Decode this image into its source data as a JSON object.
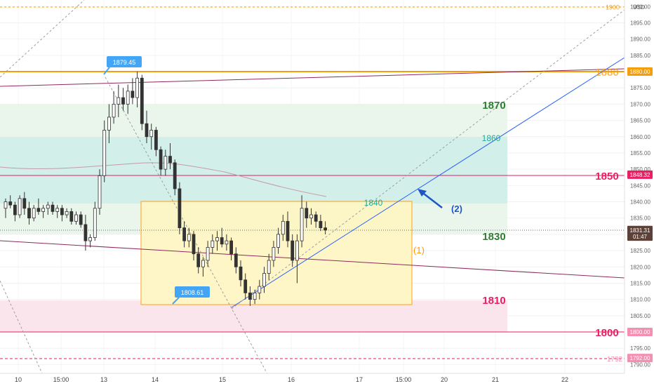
{
  "chart_data": {
    "type": "candlestick",
    "currency": "USD",
    "y_ticks": [
      1790.0,
      1795.0,
      1800.0,
      1805.0,
      1810.0,
      1815.0,
      1820.0,
      1825.0,
      1830.0,
      1835.0,
      1840.0,
      1845.0,
      1850.0,
      1855.0,
      1860.0,
      1865.0,
      1870.0,
      1875.0,
      1880.0,
      1885.0,
      1890.0,
      1895.0,
      1900.0
    ],
    "x_ticks": [
      "10",
      "15:00",
      "13",
      "14",
      "15",
      "16",
      "17",
      "15:00",
      "20",
      "21",
      "22"
    ],
    "price_badges": [
      {
        "text": "1900",
        "color": "#f59e0b",
        "style": "dashed-label"
      },
      {
        "text": "1880.00",
        "color": "#f59e0b"
      },
      {
        "text": "1848.32",
        "color": "#e91e63"
      },
      {
        "text": "1831.31",
        "color": "#5d4037"
      },
      {
        "text": "01:47",
        "color": "#5d4037"
      },
      {
        "text": "1800.00",
        "color": "#f48fb1"
      },
      {
        "text": "1792.00",
        "color": "#f48fb1"
      }
    ],
    "callouts": [
      {
        "text": "1879.45",
        "color": "#42a5f5"
      },
      {
        "text": "1808.61",
        "color": "#42a5f5"
      }
    ],
    "level_labels": [
      {
        "text": "1870",
        "color": "#2e7d32"
      },
      {
        "text": "1860",
        "color": "#26a69a"
      },
      {
        "text": "1850",
        "color": "#e91e63"
      },
      {
        "text": "1840",
        "color": "#26a69a"
      },
      {
        "text": "1830",
        "color": "#2e7d32"
      },
      {
        "text": "1810",
        "color": "#e91e63"
      },
      {
        "text": "1800",
        "color": "#e91e63"
      },
      {
        "text": "1880",
        "color": "#f59e0b"
      },
      {
        "text": "1792",
        "color": "#f48fb1"
      }
    ],
    "annotations": [
      {
        "text": "(1)",
        "color": "#ff9800"
      },
      {
        "text": "(2)",
        "color": "#1e56c8"
      }
    ],
    "zones": [
      {
        "name": "green-zone",
        "from": 1830,
        "to": 1870,
        "color": "#e8f5e9"
      },
      {
        "name": "teal-zone",
        "from": 1840,
        "to": 1860,
        "color": "#d6f2ee"
      },
      {
        "name": "pink-zone",
        "from": 1800,
        "to": 1810,
        "color": "#fbe4ec"
      },
      {
        "name": "yellow-box",
        "from": 1808.6,
        "to": 1840.6,
        "color": "#fff6c2"
      }
    ],
    "candles": [
      [
        1838,
        1841,
        1835,
        1840
      ],
      [
        1840,
        1842,
        1838,
        1839
      ],
      [
        1839,
        1840,
        1834,
        1836
      ],
      [
        1836,
        1842,
        1835,
        1841
      ],
      [
        1841,
        1843,
        1836,
        1838
      ],
      [
        1838,
        1840,
        1833,
        1835
      ],
      [
        1835,
        1839,
        1834,
        1838
      ],
      [
        1838,
        1841,
        1836,
        1837
      ],
      [
        1837,
        1839,
        1835,
        1838
      ],
      [
        1838,
        1840,
        1836,
        1839
      ],
      [
        1839,
        1840,
        1836,
        1837
      ],
      [
        1837,
        1839,
        1835,
        1838
      ],
      [
        1838,
        1839,
        1834,
        1836
      ],
      [
        1836,
        1838,
        1835,
        1837
      ],
      [
        1837,
        1838,
        1833,
        1834
      ],
      [
        1834,
        1837,
        1833,
        1836
      ],
      [
        1836,
        1837,
        1832,
        1833
      ],
      [
        1833,
        1836,
        1825,
        1828
      ],
      [
        1828,
        1830,
        1826,
        1829
      ],
      [
        1829,
        1840,
        1828,
        1838
      ],
      [
        1838,
        1850,
        1836,
        1848
      ],
      [
        1848,
        1865,
        1846,
        1862
      ],
      [
        1862,
        1870,
        1858,
        1866
      ],
      [
        1866,
        1874,
        1864,
        1870
      ],
      [
        1870,
        1876,
        1866,
        1872
      ],
      [
        1872,
        1875,
        1868,
        1870
      ],
      [
        1870,
        1876,
        1867,
        1874
      ],
      [
        1874,
        1878,
        1870,
        1872
      ],
      [
        1872,
        1880,
        1869,
        1878
      ],
      [
        1878,
        1879,
        1862,
        1864
      ],
      [
        1864,
        1868,
        1858,
        1860
      ],
      [
        1860,
        1864,
        1856,
        1862
      ],
      [
        1862,
        1863,
        1854,
        1856
      ],
      [
        1856,
        1857,
        1848,
        1850
      ],
      [
        1850,
        1856,
        1848,
        1854
      ],
      [
        1854,
        1858,
        1850,
        1852
      ],
      [
        1852,
        1853,
        1842,
        1844
      ],
      [
        1844,
        1846,
        1830,
        1832
      ],
      [
        1832,
        1834,
        1826,
        1828
      ],
      [
        1828,
        1832,
        1826,
        1830
      ],
      [
        1830,
        1831,
        1822,
        1824
      ],
      [
        1824,
        1826,
        1818,
        1820
      ],
      [
        1820,
        1823,
        1817,
        1822
      ],
      [
        1822,
        1828,
        1820,
        1826
      ],
      [
        1826,
        1830,
        1824,
        1828
      ],
      [
        1828,
        1831,
        1825,
        1829
      ],
      [
        1829,
        1832,
        1826,
        1827
      ],
      [
        1827,
        1830,
        1825,
        1828
      ],
      [
        1828,
        1829,
        1822,
        1824
      ],
      [
        1824,
        1826,
        1818,
        1820
      ],
      [
        1820,
        1822,
        1814,
        1816
      ],
      [
        1816,
        1818,
        1810,
        1812
      ],
      [
        1812,
        1814,
        1808,
        1810
      ],
      [
        1810,
        1813,
        1808.6,
        1812
      ],
      [
        1812,
        1816,
        1810,
        1814
      ],
      [
        1814,
        1820,
        1812,
        1818
      ],
      [
        1818,
        1824,
        1816,
        1822
      ],
      [
        1822,
        1828,
        1820,
        1826
      ],
      [
        1826,
        1832,
        1824,
        1830
      ],
      [
        1830,
        1836,
        1828,
        1834
      ],
      [
        1834,
        1837,
        1826,
        1828
      ],
      [
        1828,
        1830,
        1820,
        1822
      ],
      [
        1822,
        1830,
        1815,
        1828
      ],
      [
        1828,
        1842,
        1826,
        1838
      ],
      [
        1838,
        1840,
        1832,
        1835
      ],
      [
        1835,
        1838,
        1833,
        1836
      ],
      [
        1836,
        1837,
        1832,
        1834
      ],
      [
        1834,
        1836,
        1831,
        1832
      ],
      [
        1832,
        1834,
        1830,
        1831.3
      ]
    ]
  },
  "ui": {
    "currency_label": "USD"
  }
}
